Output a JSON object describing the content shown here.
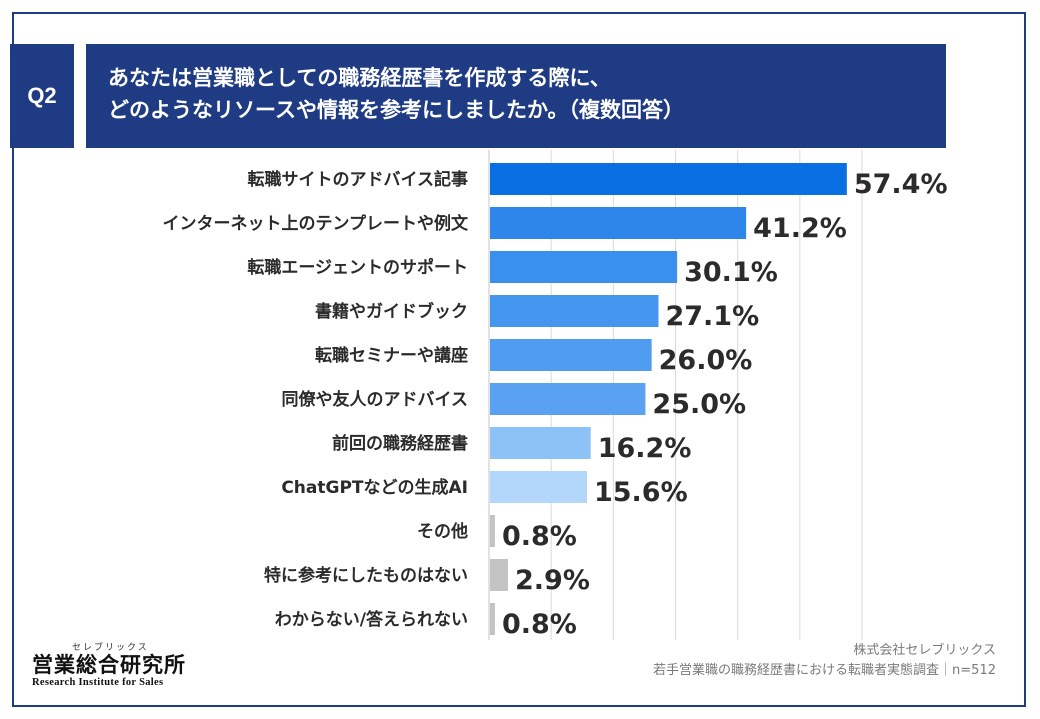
{
  "header": {
    "badge": "Q2",
    "title_line1": "あなたは営業職としての職務経歴書を作成する際に、",
    "title_line2": "どのようなリソースや情報を参考にしましたか。（複数回答）"
  },
  "chart_data": {
    "type": "bar",
    "orientation": "horizontal",
    "unit": "%",
    "xlim": [
      0,
      60
    ],
    "grid": true,
    "categories": [
      "転職サイトのアドバイス記事",
      "インターネット上のテンプレートや例文",
      "転職エージェントのサポート",
      "書籍やガイドブック",
      "転職セミナーや講座",
      "同僚や友人のアドバイス",
      "前回の職務経歴書",
      "ChatGPTなどの生成AI",
      "その他",
      "特に参考にしたものはない",
      "わからない/答えられない"
    ],
    "values": [
      57.4,
      41.2,
      30.1,
      27.1,
      26.0,
      25.0,
      16.2,
      15.6,
      0.8,
      2.9,
      0.8
    ],
    "value_labels": [
      "57.4%",
      "41.2%",
      "30.1%",
      "27.1%",
      "26.0%",
      "25.0%",
      "16.2%",
      "15.6%",
      "0.8%",
      "2.9%",
      "0.8%"
    ],
    "bar_colors": [
      "#0a6fe3",
      "#2f86ea",
      "#3a90ee",
      "#4596ef",
      "#4f9cf0",
      "#5aa2f1",
      "#8cc2f6",
      "#b3d7fa",
      "#c4c4c4",
      "#c4c4c4",
      "#c4c4c4"
    ]
  },
  "footer": {
    "brand_kana": "セレブリックス",
    "brand_name": "営業総合研究所",
    "brand_en": "Research Institute for Sales",
    "source_company": "株式会社セレブリックス",
    "source_survey": "若手営業職の職務経歴書における転職者実態調査｜n=512"
  },
  "colors": {
    "navy": "#1f3b84",
    "grid": "#d9d9d9",
    "text": "#2b2b2b"
  }
}
